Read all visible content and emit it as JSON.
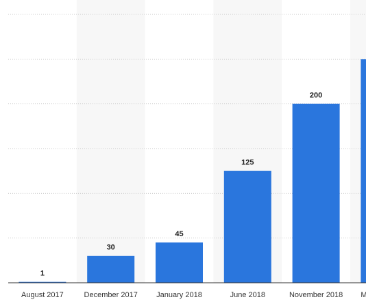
{
  "chart_data": {
    "type": "bar",
    "categories": [
      "August 2017",
      "December 2017",
      "January 2018",
      "June 2018",
      "November 2018",
      "M"
    ],
    "values": [
      1,
      30,
      45,
      125,
      200,
      250
    ],
    "color": "#2a76dd",
    "ylim": [
      0,
      300
    ],
    "yticks": [
      0,
      50,
      100,
      150,
      200,
      250,
      300
    ],
    "grid": true
  }
}
